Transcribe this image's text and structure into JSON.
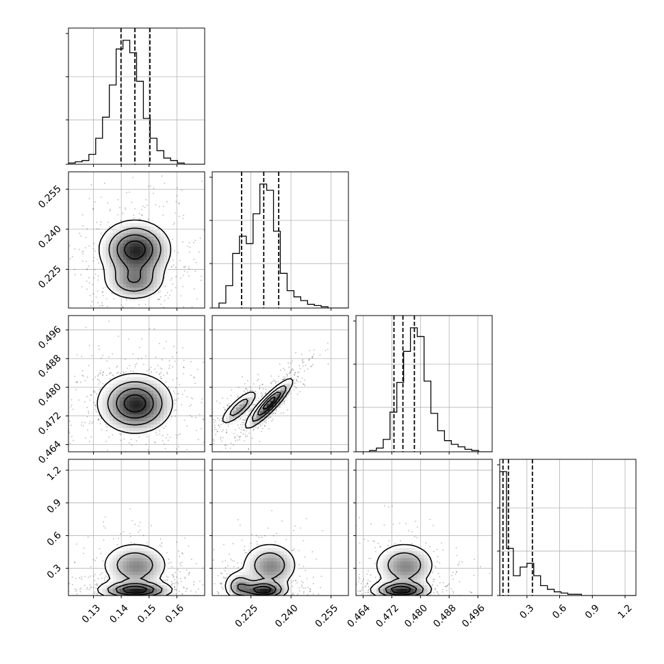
{
  "chart_data": {
    "type": "corner",
    "grid": true,
    "colors": {
      "line": "#000000",
      "grid": "#b0b0b0",
      "scatter": "#000000"
    },
    "parameters": [
      {
        "range": [
          0.121,
          0.17
        ],
        "ticks": [
          0.13,
          0.14,
          0.15,
          0.16
        ],
        "tick_labels": [
          "0.13",
          "0.14",
          "0.15",
          "0.16"
        ],
        "quantiles": [
          0.1399,
          0.1449,
          0.1503
        ]
      },
      {
        "range": [
          0.2105,
          0.2615
        ],
        "ticks": [
          0.225,
          0.24,
          0.255
        ],
        "tick_labels": [
          "0.225",
          "0.240",
          "0.255"
        ],
        "quantiles": [
          0.2215,
          0.2298,
          0.2354
        ]
      },
      {
        "range": [
          0.462,
          0.5
        ],
        "ticks": [
          0.464,
          0.472,
          0.48,
          0.488,
          0.496
        ],
        "tick_labels": [
          "0.464",
          "0.472",
          "0.480",
          "0.488",
          "0.496"
        ],
        "quantiles": [
          0.4726,
          0.4751,
          0.4783
        ]
      },
      {
        "range": [
          0.05,
          1.3
        ],
        "ticks": [
          0.3,
          0.6,
          0.9,
          1.2
        ],
        "tick_labels": [
          "0.3",
          "0.6",
          "0.9",
          "1.2"
        ],
        "quantiles": [
          0.08,
          0.13,
          0.35
        ]
      }
    ],
    "histograms": [
      {
        "counts": [
          1,
          2,
          3,
          8,
          21,
          38,
          64,
          93,
          100,
          90,
          67,
          37,
          21,
          11,
          5,
          3,
          1,
          0,
          0,
          0
        ]
      },
      {
        "counts": [
          0,
          4,
          18,
          44,
          58,
          52,
          76,
          100,
          95,
          62,
          28,
          14,
          9,
          6,
          3,
          2,
          1,
          0,
          0,
          0
        ]
      },
      {
        "counts": [
          0,
          0,
          1,
          3,
          10,
          32,
          56,
          81,
          100,
          93,
          57,
          31,
          17,
          9,
          6,
          4,
          2,
          1,
          0,
          0
        ]
      },
      {
        "counts": [
          100,
          38,
          16,
          23,
          26,
          16,
          8,
          5,
          3,
          2,
          1,
          1,
          0,
          0,
          0,
          0,
          0,
          0,
          0,
          0
        ]
      }
    ],
    "pair_blobs": [
      {
        "row": 1,
        "col": 0,
        "blobs": [
          {
            "cx": 0.1449,
            "cy": 0.2325,
            "sx": 0.0065,
            "sy": 0.0055,
            "w": 1.0
          },
          {
            "cx": 0.1445,
            "cy": 0.2205,
            "sx": 0.0058,
            "sy": 0.0038,
            "w": 0.55
          }
        ]
      },
      {
        "row": 2,
        "col": 0,
        "blobs": [
          {
            "cx": 0.1449,
            "cy": 0.4755,
            "sx": 0.0068,
            "sy": 0.0042,
            "w": 1.0
          }
        ]
      },
      {
        "row": 2,
        "col": 1,
        "blobs": [
          {
            "cx": 0.2205,
            "cy": 0.4744,
            "sx": 0.0037,
            "sy": 0.0026,
            "w": 0.55,
            "rho": 0.82
          },
          {
            "cx": 0.2318,
            "cy": 0.4755,
            "sx": 0.0045,
            "sy": 0.0035,
            "w": 1.0,
            "rho": 0.9
          }
        ]
      },
      {
        "row": 3,
        "col": 0,
        "blobs": [
          {
            "cx": 0.1449,
            "cy": 0.1,
            "sx": 0.0067,
            "sy": 0.045,
            "w": 1.0
          },
          {
            "cx": 0.1449,
            "cy": 0.33,
            "sx": 0.0063,
            "sy": 0.11,
            "w": 0.6
          }
        ]
      },
      {
        "row": 3,
        "col": 1,
        "blobs": [
          {
            "cx": 0.2295,
            "cy": 0.1,
            "sx": 0.0045,
            "sy": 0.045,
            "w": 1.0
          },
          {
            "cx": 0.2205,
            "cy": 0.14,
            "sx": 0.003,
            "sy": 0.07,
            "w": 0.55
          },
          {
            "cx": 0.232,
            "cy": 0.33,
            "sx": 0.0055,
            "sy": 0.11,
            "w": 0.6
          }
        ]
      },
      {
        "row": 3,
        "col": 2,
        "blobs": [
          {
            "cx": 0.4745,
            "cy": 0.1,
            "sx": 0.0042,
            "sy": 0.045,
            "w": 1.0
          },
          {
            "cx": 0.4755,
            "cy": 0.33,
            "sx": 0.0045,
            "sy": 0.11,
            "w": 0.6
          }
        ]
      }
    ]
  }
}
